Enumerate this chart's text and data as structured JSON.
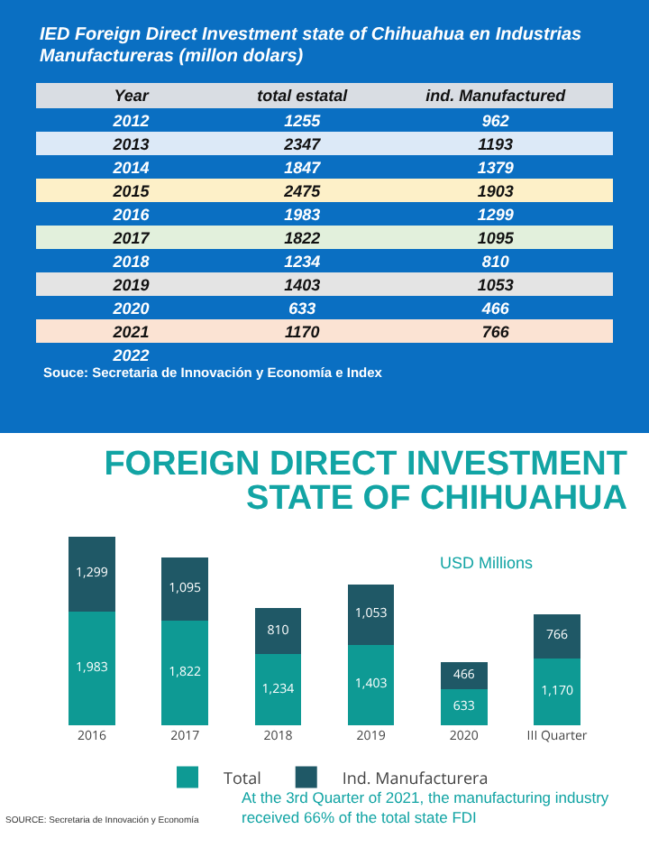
{
  "chart_data": [
    {
      "type": "heatmap",
      "title": "IED Foreign Direct Investment state of Chihuahua  en Industrias Manufactureras (millon  dolars)",
      "ylabel": "Year",
      "categories": [
        "total estatal",
        "ind. Manufactured"
      ],
      "y_categories": [
        "2012",
        "2013",
        "2014",
        "2015",
        "2016",
        "2017",
        "2018",
        "2019",
        "2020",
        "2021",
        "2022"
      ],
      "colors": [
        "#0a6fc2",
        "#dce9f7",
        "#0a6fc2",
        "#fdf0c8",
        "#0a6fc2",
        "#e2f0dc",
        "#0a6fc2",
        "#e4e4e4",
        "#0a6fc2",
        "#fbe3d3",
        "#0a6fc2"
      ],
      "cells": [
        [
          1255,
          962
        ],
        [
          2347,
          1193
        ],
        [
          1847,
          1379
        ],
        [
          2475,
          1903
        ],
        [
          1983,
          1299
        ],
        [
          1822,
          1095
        ],
        [
          1234,
          810
        ],
        [
          1403,
          1053
        ],
        [
          633,
          466
        ],
        [
          1170,
          766
        ],
        [
          null,
          null
        ]
      ],
      "data_labels": true,
      "annotations": [
        "Souce:  Secretaria de Innovación y Economía e Index"
      ]
    },
    {
      "type": "bar",
      "title": "FOREIGN DIRECT INVESTMENT STATE OF CHIHUAHUA",
      "categories": [
        "2016",
        "2017",
        "2018",
        "2019",
        "2020",
        "III Quarter"
      ],
      "stacked": true,
      "legend": "bottom",
      "series": [
        {
          "name": "Total",
          "color": "#0e9a94",
          "values": [
            1983,
            1822,
            1234,
            1403,
            633,
            1170
          ],
          "value_labels": [
            "1,983",
            "1,822",
            "1,234",
            "1,403",
            "633",
            "1,170"
          ]
        },
        {
          "name": "Ind. Manufacturera",
          "color": "#1f5866",
          "values": [
            1299,
            1095,
            810,
            1053,
            466,
            766
          ],
          "value_labels": [
            "1,299",
            "1,095",
            "810",
            "1,053",
            "466",
            "766"
          ]
        }
      ],
      "annotations": [
        "USD Millions",
        "At the 3rd Quarter of 2021, the manufacturing industry received 66% of the total state FDI",
        "SOURCE: Secretaria de Innovación y Economía"
      ]
    }
  ]
}
